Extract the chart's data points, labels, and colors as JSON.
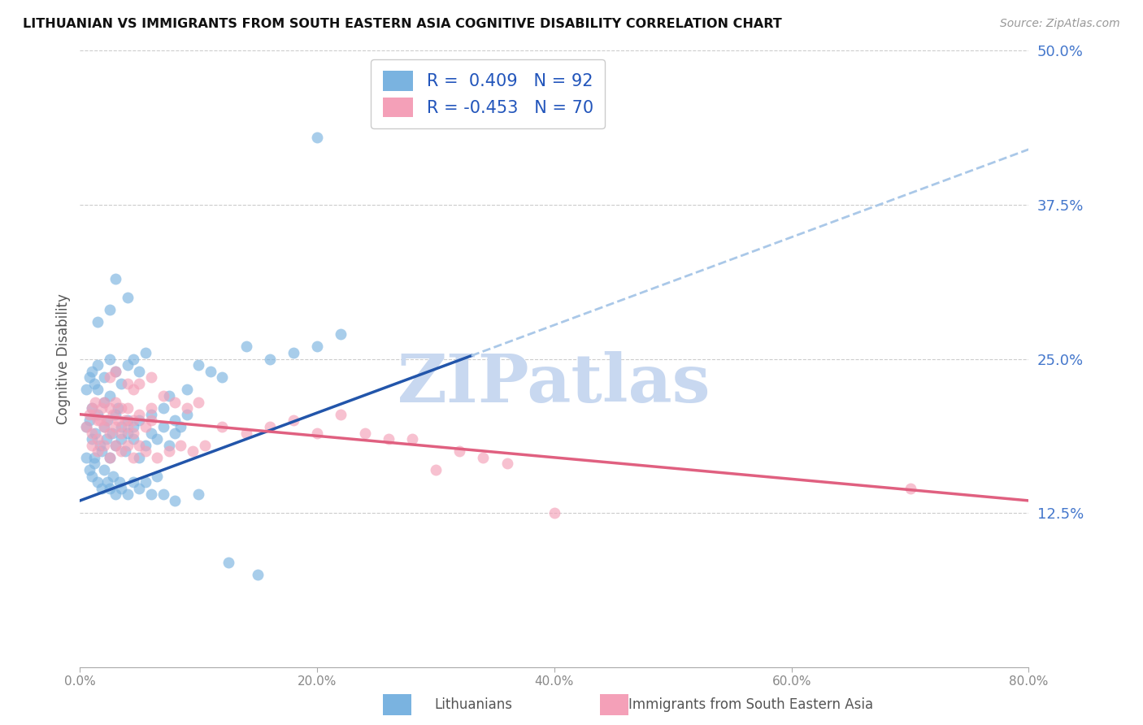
{
  "title": "LITHUANIAN VS IMMIGRANTS FROM SOUTH EASTERN ASIA COGNITIVE DISABILITY CORRELATION CHART",
  "source": "Source: ZipAtlas.com",
  "ylabel": "Cognitive Disability",
  "xlim": [
    0.0,
    80.0
  ],
  "ylim": [
    0.0,
    50.0
  ],
  "yticks": [
    12.5,
    25.0,
    37.5,
    50.0
  ],
  "xticks": [
    0.0,
    20.0,
    40.0,
    60.0,
    80.0
  ],
  "blue_R": 0.409,
  "blue_N": 92,
  "pink_R": -0.453,
  "pink_N": 70,
  "blue_color": "#7ab3e0",
  "pink_color": "#f4a0b8",
  "trend_blue_color": "#2255aa",
  "trend_pink_color": "#e06080",
  "trend_dash_color": "#aac8e8",
  "watermark": "ZIPatlas",
  "watermark_color": "#c8d8f0",
  "legend_label_blue": "Lithuanians",
  "legend_label_pink": "Immigrants from South Eastern Asia",
  "blue_trend_x0": 0,
  "blue_trend_y0": 13.5,
  "blue_trend_x1": 80,
  "blue_trend_y1": 42.0,
  "blue_solid_end_x": 33,
  "pink_trend_x0": 0,
  "pink_trend_y0": 20.5,
  "pink_trend_x1": 80,
  "pink_trend_y1": 13.5,
  "blue_points": [
    [
      0.5,
      19.5
    ],
    [
      0.8,
      20.0
    ],
    [
      1.0,
      18.5
    ],
    [
      1.0,
      21.0
    ],
    [
      1.2,
      17.0
    ],
    [
      1.3,
      19.0
    ],
    [
      1.5,
      20.5
    ],
    [
      1.5,
      22.5
    ],
    [
      1.7,
      18.0
    ],
    [
      1.8,
      17.5
    ],
    [
      2.0,
      19.5
    ],
    [
      2.0,
      21.5
    ],
    [
      2.2,
      18.5
    ],
    [
      2.3,
      20.0
    ],
    [
      2.5,
      17.0
    ],
    [
      2.5,
      22.0
    ],
    [
      2.7,
      19.0
    ],
    [
      3.0,
      18.0
    ],
    [
      3.0,
      20.5
    ],
    [
      3.2,
      21.0
    ],
    [
      3.5,
      18.5
    ],
    [
      3.5,
      19.5
    ],
    [
      3.8,
      17.5
    ],
    [
      4.0,
      19.0
    ],
    [
      4.0,
      20.0
    ],
    [
      4.5,
      18.5
    ],
    [
      4.5,
      19.5
    ],
    [
      5.0,
      17.0
    ],
    [
      5.0,
      20.0
    ],
    [
      5.5,
      18.0
    ],
    [
      6.0,
      19.0
    ],
    [
      6.0,
      20.5
    ],
    [
      6.5,
      18.5
    ],
    [
      7.0,
      19.5
    ],
    [
      7.0,
      21.0
    ],
    [
      7.5,
      18.0
    ],
    [
      8.0,
      19.0
    ],
    [
      8.0,
      20.0
    ],
    [
      8.5,
      19.5
    ],
    [
      9.0,
      20.5
    ],
    [
      0.5,
      17.0
    ],
    [
      0.8,
      16.0
    ],
    [
      1.0,
      15.5
    ],
    [
      1.2,
      16.5
    ],
    [
      1.5,
      15.0
    ],
    [
      1.8,
      14.5
    ],
    [
      2.0,
      16.0
    ],
    [
      2.3,
      15.0
    ],
    [
      2.5,
      14.5
    ],
    [
      2.8,
      15.5
    ],
    [
      3.0,
      14.0
    ],
    [
      3.3,
      15.0
    ],
    [
      3.5,
      14.5
    ],
    [
      4.0,
      14.0
    ],
    [
      4.5,
      15.0
    ],
    [
      5.0,
      14.5
    ],
    [
      5.5,
      15.0
    ],
    [
      6.0,
      14.0
    ],
    [
      6.5,
      15.5
    ],
    [
      7.0,
      14.0
    ],
    [
      0.5,
      22.5
    ],
    [
      0.8,
      23.5
    ],
    [
      1.0,
      24.0
    ],
    [
      1.2,
      23.0
    ],
    [
      1.5,
      24.5
    ],
    [
      2.0,
      23.5
    ],
    [
      2.5,
      25.0
    ],
    [
      3.0,
      24.0
    ],
    [
      3.5,
      23.0
    ],
    [
      4.0,
      24.5
    ],
    [
      4.5,
      25.0
    ],
    [
      5.0,
      24.0
    ],
    [
      5.5,
      25.5
    ],
    [
      1.5,
      28.0
    ],
    [
      2.5,
      29.0
    ],
    [
      3.0,
      31.5
    ],
    [
      4.0,
      30.0
    ],
    [
      7.5,
      22.0
    ],
    [
      9.0,
      22.5
    ],
    [
      10.0,
      24.5
    ],
    [
      11.0,
      24.0
    ],
    [
      12.0,
      23.5
    ],
    [
      14.0,
      26.0
    ],
    [
      16.0,
      25.0
    ],
    [
      18.0,
      25.5
    ],
    [
      20.0,
      26.0
    ],
    [
      22.0,
      27.0
    ],
    [
      8.0,
      13.5
    ],
    [
      10.0,
      14.0
    ],
    [
      12.5,
      8.5
    ],
    [
      15.0,
      7.5
    ],
    [
      20.0,
      43.0
    ]
  ],
  "pink_points": [
    [
      0.5,
      19.5
    ],
    [
      0.8,
      20.5
    ],
    [
      1.0,
      21.0
    ],
    [
      1.0,
      19.0
    ],
    [
      1.2,
      20.5
    ],
    [
      1.3,
      21.5
    ],
    [
      1.5,
      20.0
    ],
    [
      1.5,
      18.5
    ],
    [
      1.7,
      20.0
    ],
    [
      1.8,
      21.0
    ],
    [
      2.0,
      19.5
    ],
    [
      2.0,
      21.5
    ],
    [
      2.2,
      20.0
    ],
    [
      2.5,
      19.0
    ],
    [
      2.5,
      21.0
    ],
    [
      2.8,
      20.5
    ],
    [
      3.0,
      19.5
    ],
    [
      3.0,
      21.5
    ],
    [
      3.2,
      20.0
    ],
    [
      3.5,
      19.0
    ],
    [
      3.5,
      21.0
    ],
    [
      3.8,
      20.0
    ],
    [
      4.0,
      19.5
    ],
    [
      4.0,
      21.0
    ],
    [
      4.5,
      20.0
    ],
    [
      4.5,
      19.0
    ],
    [
      5.0,
      20.5
    ],
    [
      5.5,
      19.5
    ],
    [
      6.0,
      20.0
    ],
    [
      6.0,
      21.0
    ],
    [
      2.5,
      23.5
    ],
    [
      3.0,
      24.0
    ],
    [
      4.0,
      23.0
    ],
    [
      4.5,
      22.5
    ],
    [
      5.0,
      23.0
    ],
    [
      6.0,
      23.5
    ],
    [
      7.0,
      22.0
    ],
    [
      8.0,
      21.5
    ],
    [
      9.0,
      21.0
    ],
    [
      10.0,
      21.5
    ],
    [
      1.0,
      18.0
    ],
    [
      1.5,
      17.5
    ],
    [
      2.0,
      18.0
    ],
    [
      2.5,
      17.0
    ],
    [
      3.0,
      18.0
    ],
    [
      3.5,
      17.5
    ],
    [
      4.0,
      18.0
    ],
    [
      4.5,
      17.0
    ],
    [
      5.0,
      18.0
    ],
    [
      5.5,
      17.5
    ],
    [
      6.5,
      17.0
    ],
    [
      7.5,
      17.5
    ],
    [
      8.5,
      18.0
    ],
    [
      9.5,
      17.5
    ],
    [
      10.5,
      18.0
    ],
    [
      12.0,
      19.5
    ],
    [
      14.0,
      19.0
    ],
    [
      16.0,
      19.5
    ],
    [
      18.0,
      20.0
    ],
    [
      20.0,
      19.0
    ],
    [
      22.0,
      20.5
    ],
    [
      24.0,
      19.0
    ],
    [
      26.0,
      18.5
    ],
    [
      28.0,
      18.5
    ],
    [
      30.0,
      16.0
    ],
    [
      32.0,
      17.5
    ],
    [
      34.0,
      17.0
    ],
    [
      36.0,
      16.5
    ],
    [
      40.0,
      12.5
    ],
    [
      70.0,
      14.5
    ]
  ]
}
